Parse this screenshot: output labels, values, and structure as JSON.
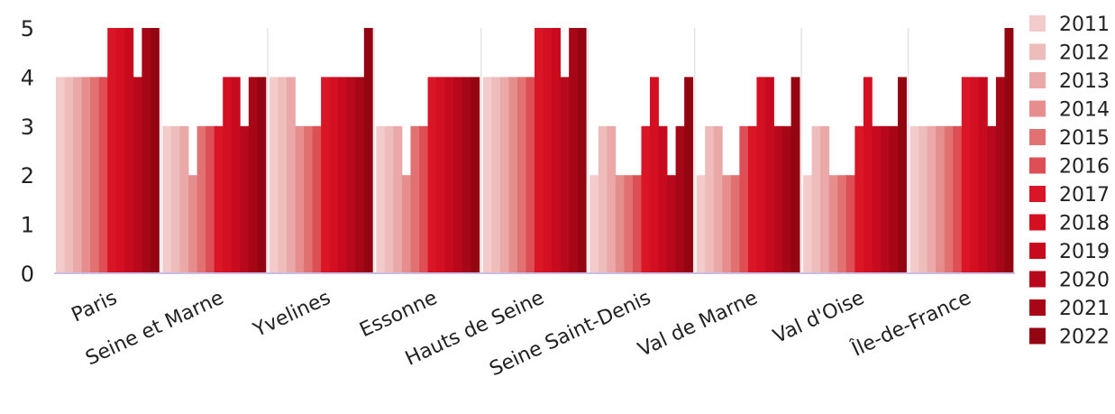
{
  "chart_data": {
    "type": "bar",
    "categories": [
      "Paris",
      "Seine et Marne",
      "Yvelines",
      "Essonne",
      "Hauts de Seine",
      "Seine Saint-Denis",
      "Val de Marne",
      "Val d'Oise",
      "Île-de-France"
    ],
    "series": [
      {
        "name": "2011",
        "color": "#f3cbcb",
        "values": [
          4,
          3,
          4,
          3,
          4,
          2,
          2,
          2,
          3
        ]
      },
      {
        "name": "2012",
        "color": "#efbcbc",
        "values": [
          4,
          3,
          4,
          3,
          4,
          3,
          3,
          3,
          3
        ]
      },
      {
        "name": "2013",
        "color": "#eaa8a8",
        "values": [
          4,
          3,
          4,
          3,
          4,
          3,
          3,
          3,
          3
        ]
      },
      {
        "name": "2014",
        "color": "#e68e8e",
        "values": [
          4,
          2,
          3,
          2,
          4,
          2,
          2,
          2,
          3
        ]
      },
      {
        "name": "2015",
        "color": "#e27272",
        "values": [
          4,
          3,
          3,
          3,
          4,
          2,
          2,
          2,
          3
        ]
      },
      {
        "name": "2016",
        "color": "#de4f55",
        "values": [
          4,
          3,
          3,
          3,
          4,
          2,
          3,
          2,
          3
        ]
      },
      {
        "name": "2017",
        "color": "#da1626",
        "values": [
          5,
          3,
          4,
          4,
          5,
          3,
          3,
          3,
          4
        ]
      },
      {
        "name": "2018",
        "color": "#d40f22",
        "values": [
          5,
          4,
          4,
          4,
          5,
          4,
          4,
          4,
          4
        ]
      },
      {
        "name": "2019",
        "color": "#c70a1e",
        "values": [
          5,
          4,
          4,
          4,
          5,
          3,
          4,
          3,
          4
        ]
      },
      {
        "name": "2020",
        "color": "#b8081b",
        "values": [
          4,
          3,
          4,
          4,
          4,
          2,
          3,
          3,
          3
        ]
      },
      {
        "name": "2021",
        "color": "#a60616",
        "values": [
          5,
          4,
          4,
          4,
          5,
          3,
          3,
          3,
          4
        ]
      },
      {
        "name": "2022",
        "color": "#940512",
        "values": [
          5,
          4,
          5,
          4,
          5,
          4,
          4,
          4,
          5
        ]
      }
    ],
    "ylim": [
      0,
      5
    ],
    "yticks": [
      0,
      1,
      2,
      3,
      4,
      5
    ],
    "grid": "vertical separators between categories",
    "legend_position": "right",
    "title": "",
    "xlabel": "",
    "ylabel": ""
  }
}
